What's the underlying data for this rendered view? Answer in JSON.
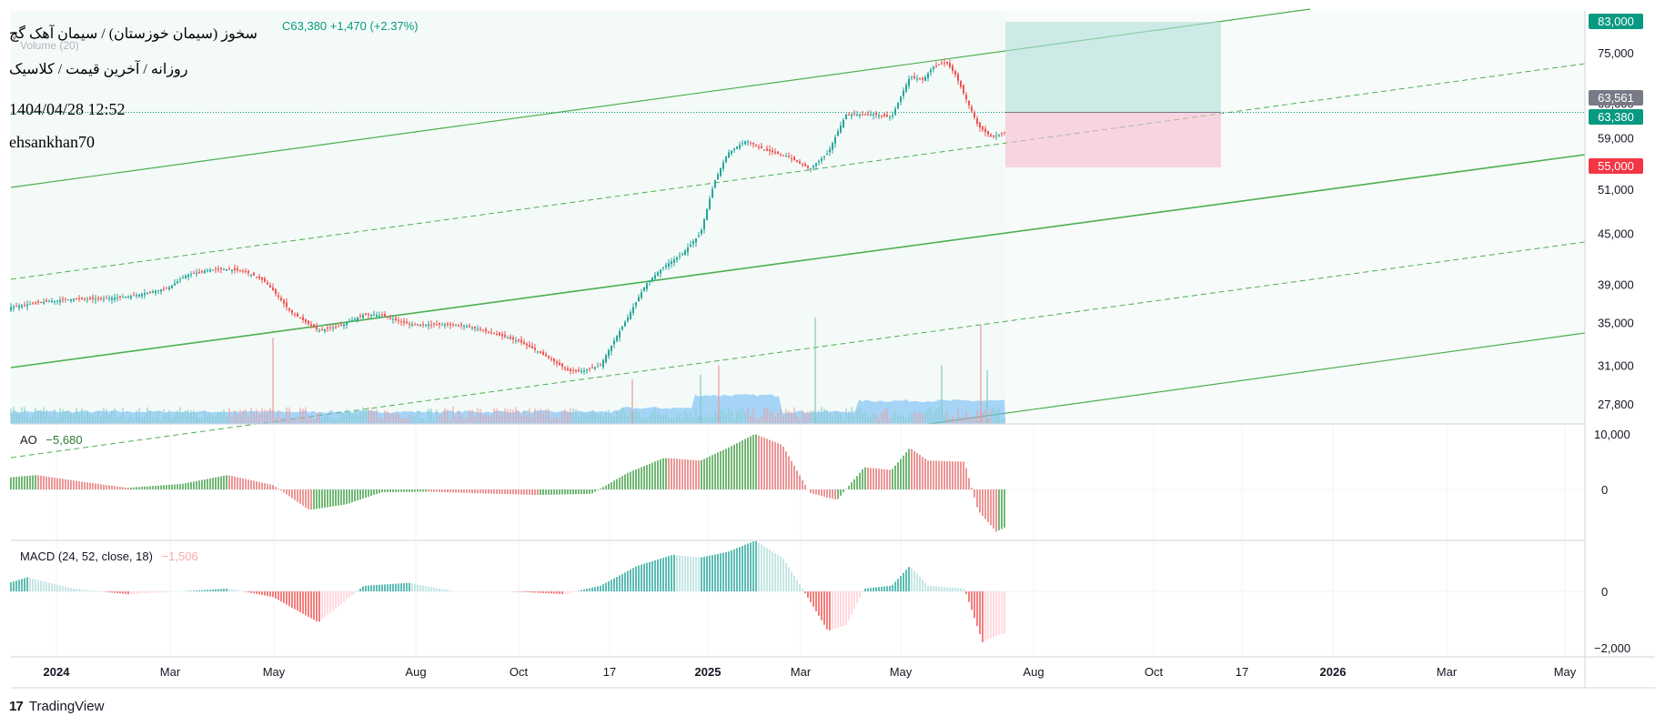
{
  "header": {
    "symbol_line": "سخوز (سیمان خوزستان) / سیمان آهک گچ",
    "ohlc_text": "C63,380 +1,470 (+2.37%)",
    "volume_line": "Volume (20)",
    "timeframe_line": "روزانه / آخرین قیمت / کلاسیک",
    "datetime": "1404/04/28 12:52",
    "author": "ehsankhan70"
  },
  "indicators": {
    "ao": {
      "label": "AO",
      "value": "−5,680"
    },
    "macd": {
      "label": "MACD (24, 52, close, 18)",
      "value": "−1,506"
    }
  },
  "price_badges": [
    {
      "name": "target",
      "text": "83,000",
      "value": 83000,
      "color": "#089981"
    },
    {
      "name": "current-gray",
      "text": "63,561",
      "value": 63561,
      "color": "#787b86"
    },
    {
      "name": "last-price",
      "text": "63,380",
      "value": 63380,
      "color": "#089981"
    },
    {
      "name": "stop",
      "text": "55,000",
      "value": 55000,
      "color": "#f23645"
    }
  ],
  "footer": {
    "brand": "TradingView"
  },
  "colors": {
    "up": "#26a69a",
    "down": "#ef5350",
    "trend": "#4caf50",
    "volume": "#64b5f6",
    "grid": "#f0f3fa"
  },
  "chart_data": {
    "type": "candlestick",
    "price_axis": {
      "scale": "log",
      "ticks": [
        {
          "label": "75,000",
          "v": 75000
        },
        {
          "label": "65,000",
          "v": 65000
        },
        {
          "label": "59,000",
          "v": 59000
        },
        {
          "label": "51,000",
          "v": 51000
        },
        {
          "label": "45,000",
          "v": 45000
        },
        {
          "label": "39,000",
          "v": 39000
        },
        {
          "label": "35,000",
          "v": 35000
        },
        {
          "label": "31,000",
          "v": 31000
        },
        {
          "label": "27,800",
          "v": 27800
        }
      ]
    },
    "ao_axis": {
      "ticks": [
        {
          "label": "10,000",
          "v": 10000
        },
        {
          "label": "0",
          "v": 0
        }
      ]
    },
    "macd_axis": {
      "ticks": [
        {
          "label": "0",
          "v": 0
        },
        {
          "label": "−2,000",
          "v": -2000
        }
      ]
    },
    "time_axis": [
      {
        "label": "2024",
        "bold": true
      },
      {
        "label": "Mar"
      },
      {
        "label": "May"
      },
      {
        "label": "Aug"
      },
      {
        "label": "Oct"
      },
      {
        "label": "17"
      },
      {
        "label": "2025",
        "bold": true
      },
      {
        "label": "Mar"
      },
      {
        "label": "May"
      },
      {
        "label": "Aug"
      },
      {
        "label": "Oct"
      },
      {
        "label": "17"
      },
      {
        "label": "2026",
        "bold": true
      },
      {
        "label": "Mar"
      },
      {
        "label": "May"
      }
    ],
    "price_path": [
      [
        0,
        35500
      ],
      [
        10,
        36500
      ],
      [
        40,
        37000
      ],
      [
        80,
        37400
      ],
      [
        110,
        37400
      ],
      [
        145,
        37700
      ],
      [
        185,
        38600
      ],
      [
        205,
        40000
      ],
      [
        230,
        40600
      ],
      [
        250,
        40700
      ],
      [
        270,
        40400
      ],
      [
        290,
        39400
      ],
      [
        300,
        38300
      ],
      [
        320,
        36000
      ],
      [
        350,
        34200
      ],
      [
        375,
        34700
      ],
      [
        400,
        35800
      ],
      [
        420,
        35700
      ],
      [
        450,
        34800
      ],
      [
        480,
        34800
      ],
      [
        510,
        34700
      ],
      [
        540,
        34000
      ],
      [
        570,
        33200
      ],
      [
        590,
        32300
      ],
      [
        610,
        31300
      ],
      [
        625,
        30500
      ],
      [
        640,
        30500
      ],
      [
        660,
        31000
      ],
      [
        670,
        32500
      ],
      [
        690,
        35500
      ],
      [
        710,
        39000
      ],
      [
        730,
        41000
      ],
      [
        750,
        42500
      ],
      [
        770,
        45000
      ],
      [
        785,
        52000
      ],
      [
        800,
        56500
      ],
      [
        820,
        58500
      ],
      [
        840,
        57000
      ],
      [
        865,
        56000
      ],
      [
        890,
        54000
      ],
      [
        910,
        56500
      ],
      [
        930,
        63000
      ],
      [
        960,
        63000
      ],
      [
        980,
        62500
      ],
      [
        1000,
        70000
      ],
      [
        1015,
        69500
      ],
      [
        1025,
        72000
      ],
      [
        1040,
        73000
      ],
      [
        1050,
        70500
      ],
      [
        1060,
        66500
      ],
      [
        1075,
        61000
      ],
      [
        1090,
        59000
      ],
      [
        1105,
        60000
      ]
    ],
    "volume_spikes": [
      [
        300,
        33500
      ],
      [
        896,
        35500
      ],
      [
        1078,
        34800
      ],
      [
        1035,
        31000
      ],
      [
        790,
        31000
      ],
      [
        770,
        30200
      ],
      [
        695,
        29800
      ],
      [
        1085,
        30600
      ]
    ],
    "ao_path": [
      [
        0,
        2000
      ],
      [
        40,
        2600
      ],
      [
        90,
        1400
      ],
      [
        140,
        300
      ],
      [
        200,
        1000
      ],
      [
        250,
        2600
      ],
      [
        300,
        800
      ],
      [
        340,
        -3700
      ],
      [
        380,
        -2700
      ],
      [
        420,
        -500
      ],
      [
        470,
        -400
      ],
      [
        530,
        -700
      ],
      [
        590,
        -1000
      ],
      [
        650,
        -800
      ],
      [
        690,
        3000
      ],
      [
        730,
        5700
      ],
      [
        770,
        5200
      ],
      [
        800,
        7500
      ],
      [
        830,
        10000
      ],
      [
        860,
        8000
      ],
      [
        890,
        -600
      ],
      [
        920,
        -1900
      ],
      [
        950,
        4000
      ],
      [
        980,
        3500
      ],
      [
        1000,
        7500
      ],
      [
        1020,
        5200
      ],
      [
        1060,
        5000
      ],
      [
        1075,
        -3800
      ],
      [
        1095,
        -7600
      ],
      [
        1105,
        -6800
      ]
    ],
    "macd_path": [
      [
        0,
        200
      ],
      [
        30,
        500
      ],
      [
        80,
        100
      ],
      [
        140,
        -100
      ],
      [
        200,
        0
      ],
      [
        250,
        100
      ],
      [
        300,
        -200
      ],
      [
        350,
        -1100
      ],
      [
        400,
        200
      ],
      [
        450,
        300
      ],
      [
        500,
        0
      ],
      [
        560,
        0
      ],
      [
        620,
        -100
      ],
      [
        660,
        200
      ],
      [
        700,
        900
      ],
      [
        740,
        1300
      ],
      [
        770,
        1200
      ],
      [
        800,
        1400
      ],
      [
        830,
        1800
      ],
      [
        860,
        1200
      ],
      [
        880,
        200
      ],
      [
        910,
        -1400
      ],
      [
        930,
        -1200
      ],
      [
        950,
        100
      ],
      [
        980,
        200
      ],
      [
        1000,
        900
      ],
      [
        1020,
        200
      ],
      [
        1060,
        100
      ],
      [
        1080,
        -1800
      ],
      [
        1100,
        -1500
      ]
    ],
    "position": {
      "target": 83000,
      "entry": 63380,
      "stop": 55000
    }
  }
}
